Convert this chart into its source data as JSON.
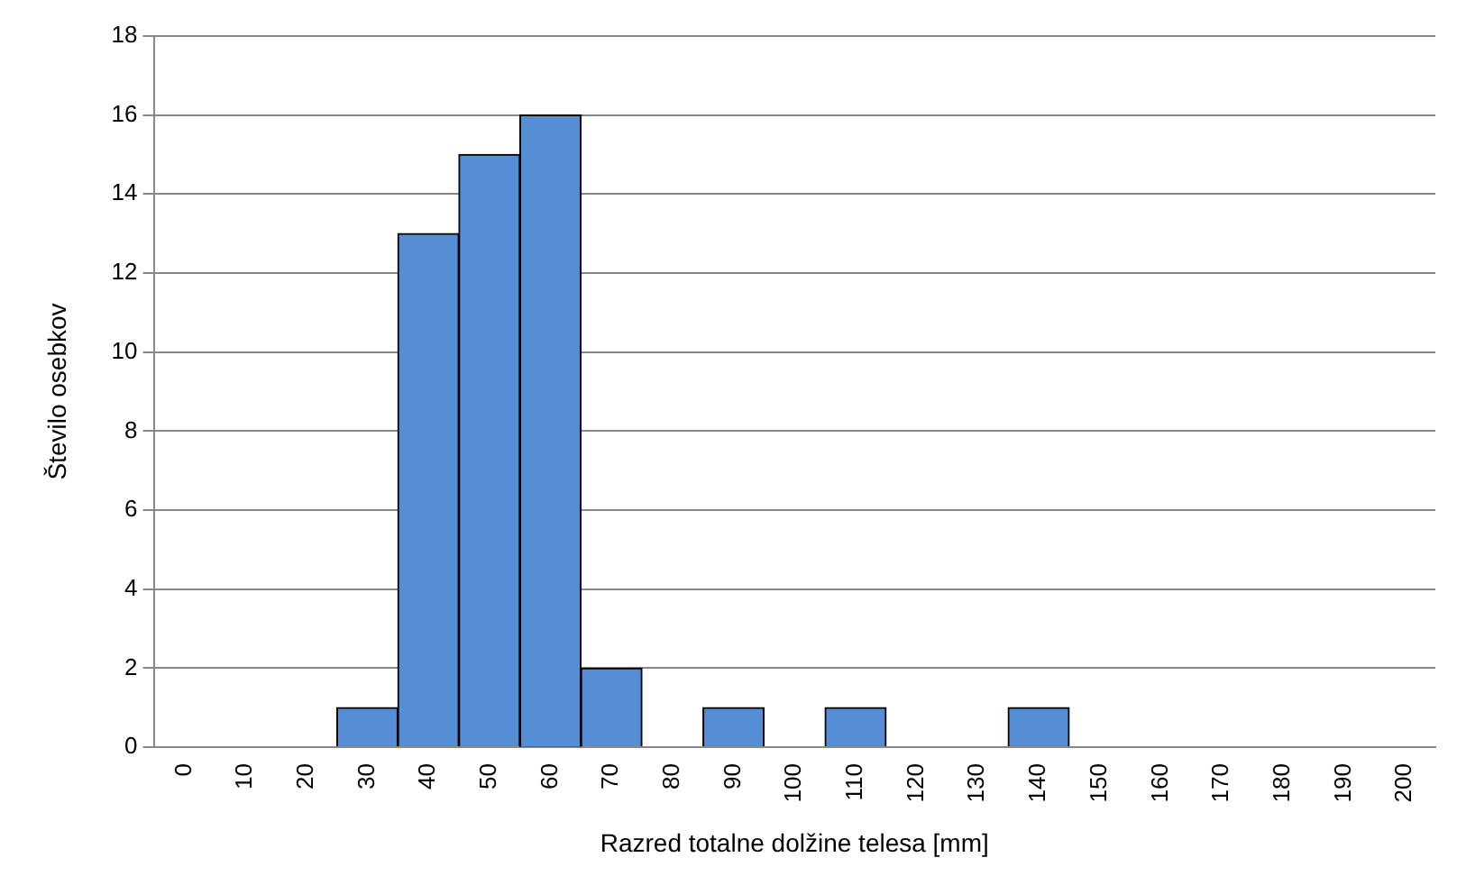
{
  "chart_data": {
    "type": "bar",
    "xlabel": "Razred totalne dolžine telesa [mm]",
    "ylabel": "Število osebkov",
    "categories": [
      "0",
      "10",
      "20",
      "30",
      "40",
      "50",
      "60",
      "70",
      "80",
      "90",
      "100",
      "110",
      "120",
      "130",
      "140",
      "150",
      "160",
      "170",
      "180",
      "190",
      "200"
    ],
    "values": [
      0,
      0,
      0,
      1,
      13,
      15,
      16,
      2,
      0,
      1,
      0,
      1,
      0,
      0,
      1,
      0,
      0,
      0,
      0,
      0,
      0
    ],
    "color": "#558ed5",
    "ylim": [
      0,
      18
    ],
    "yticks": [
      0,
      2,
      4,
      6,
      8,
      10,
      12,
      14,
      16,
      18
    ],
    "grid": "y",
    "legend": false
  }
}
